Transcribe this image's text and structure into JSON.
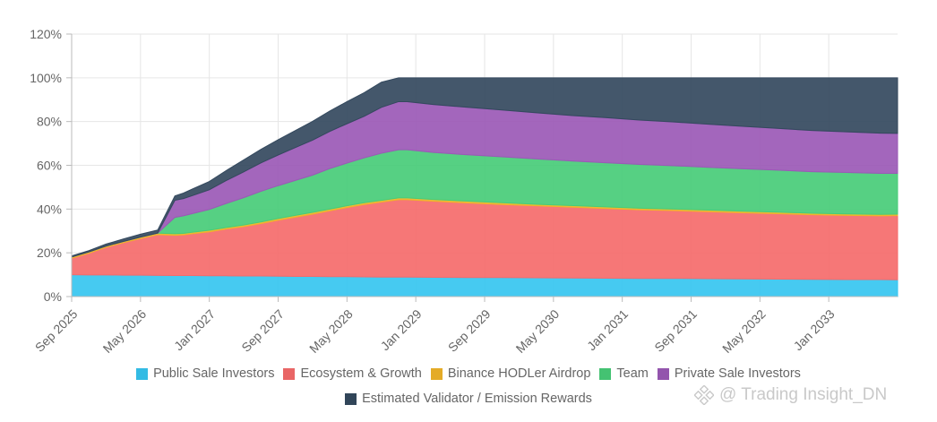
{
  "chart_data": {
    "type": "area",
    "stacked": true,
    "x": [
      "2025-09",
      "2025-11",
      "2026-01",
      "2026-03",
      "2026-05",
      "2026-07",
      "2026-09",
      "2026-10",
      "2026-11",
      "2027-01",
      "2027-03",
      "2027-05",
      "2027-07",
      "2027-09",
      "2027-11",
      "2028-01",
      "2028-03",
      "2028-05",
      "2028-07",
      "2028-09",
      "2028-11",
      "2028-12",
      "2029-03",
      "2029-07",
      "2029-11",
      "2030-03",
      "2030-07",
      "2030-11",
      "2031-03",
      "2031-07",
      "2031-11",
      "2032-03",
      "2032-07",
      "2032-11",
      "2033-03",
      "2033-07",
      "2033-09"
    ],
    "xtick_labels": [
      "Sep 2025",
      "May 2026",
      "Jan 2027",
      "Sep 2027",
      "May 2028",
      "Jan 2029",
      "Sep 2029",
      "May 2030",
      "Jan 2031",
      "Sep 2031",
      "May 2032",
      "Jan 2033"
    ],
    "ytick_labels": [
      "0%",
      "20%",
      "40%",
      "60%",
      "80%",
      "100%",
      "120%"
    ],
    "ylim": [
      0,
      120
    ],
    "grid": true,
    "legend_position": "bottom",
    "series": [
      {
        "name": "Public Sale Investors",
        "color": "#36c5f0",
        "values": [
          10.0,
          9.9,
          9.9,
          9.8,
          9.8,
          9.7,
          9.6,
          9.6,
          9.6,
          9.5,
          9.5,
          9.4,
          9.4,
          9.3,
          9.2,
          9.2,
          9.1,
          9.1,
          9.0,
          8.9,
          8.9,
          8.9,
          8.8,
          8.7,
          8.7,
          8.6,
          8.5,
          8.4,
          8.3,
          8.3,
          8.2,
          8.1,
          8.0,
          7.9,
          7.8,
          7.8,
          7.7
        ]
      },
      {
        "name": "Ecosystem & Growth",
        "color": "#f56b6b",
        "values": [
          7.5,
          9.9,
          12.6,
          14.8,
          16.7,
          18.6,
          18.4,
          18.6,
          19.1,
          20.1,
          21.4,
          22.6,
          24.0,
          25.6,
          27.1,
          28.5,
          30.1,
          31.6,
          33.1,
          34.3,
          35.4,
          35.4,
          34.8,
          34.1,
          33.4,
          32.9,
          32.4,
          31.9,
          31.4,
          31.0,
          30.6,
          30.2,
          29.9,
          29.5,
          29.3,
          29.1,
          29.3
        ]
      },
      {
        "name": "Binance HODLer Airdrop",
        "color": "#f0b429",
        "values": [
          0.6,
          0.6,
          0.6,
          0.6,
          0.7,
          0.7,
          0.7,
          0.7,
          0.7,
          0.7,
          0.7,
          0.7,
          0.7,
          0.8,
          0.8,
          0.8,
          0.8,
          0.8,
          0.8,
          0.8,
          0.8,
          0.8,
          0.8,
          0.8,
          0.8,
          0.7,
          0.7,
          0.7,
          0.7,
          0.7,
          0.7,
          0.7,
          0.7,
          0.7,
          0.7,
          0.7,
          0.7
        ]
      },
      {
        "name": "Team",
        "color": "#48cc78",
        "values": [
          0,
          0,
          0,
          0,
          0,
          0,
          7.5,
          8.0,
          8.5,
          9.5,
          11.0,
          12.5,
          14.0,
          15.0,
          16.0,
          17.0,
          18.5,
          19.5,
          20.5,
          21.5,
          22.0,
          22.0,
          21.5,
          21.2,
          21.0,
          20.7,
          20.4,
          20.2,
          20.0,
          19.8,
          19.6,
          19.4,
          19.2,
          19.0,
          18.9,
          18.7,
          18.6
        ]
      },
      {
        "name": "Private Sale Investors",
        "color": "#9b59b6",
        "values": [
          0,
          0,
          0,
          0,
          0,
          0,
          7.8,
          7.9,
          8.2,
          9.0,
          10.5,
          11.8,
          13.0,
          14.0,
          15.0,
          16.0,
          17.0,
          18.0,
          19.0,
          21.0,
          22.0,
          22.0,
          21.9,
          21.7,
          21.4,
          21.1,
          20.8,
          20.6,
          20.3,
          20.0,
          19.7,
          19.4,
          19.1,
          18.8,
          18.6,
          18.4,
          18.3
        ]
      },
      {
        "name": "Estimated Validator / Emission Rewards",
        "color": "#34495e",
        "values": [
          0.5,
          0.6,
          0.9,
          1.1,
          1.3,
          1.4,
          2.0,
          2.5,
          3.0,
          3.8,
          4.6,
          5.5,
          6.2,
          7.0,
          7.8,
          8.6,
          9.3,
          10.1,
          10.8,
          11.5,
          10.9,
          10.9,
          12.2,
          13.5,
          14.7,
          16.0,
          17.2,
          18.2,
          19.3,
          20.2,
          21.2,
          22.2,
          23.1,
          24.1,
          24.7,
          25.3,
          25.4
        ]
      }
    ]
  },
  "watermark": {
    "text": "@ Trading Insight_DN"
  }
}
